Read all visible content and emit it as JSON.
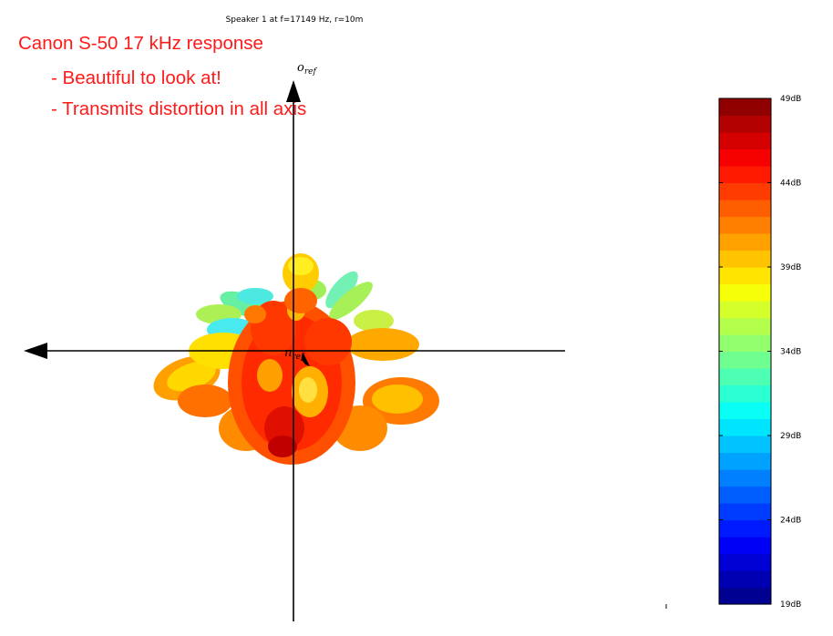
{
  "plot": {
    "title": "Speaker 1 at f=17149 Hz, r=10m",
    "axis_labels": {
      "vertical": "o",
      "vertical_sub": "ref",
      "origin": "n",
      "origin_sub": "ref"
    }
  },
  "annotation": {
    "title": "Canon S-50 17 kHz response",
    "line1": "- Beautiful to look at!",
    "line2": "- Transmits distortion in all axis",
    "color": "#ff1a1a"
  },
  "chart_data": {
    "type": "heatmap",
    "title": "Speaker 1 at f=17149 Hz, r=10m",
    "description_type": "3D polar directivity balloon, colored by level",
    "colorbar": {
      "min": 19,
      "max": 49,
      "unit": "dB",
      "levels": 30,
      "ticks": [
        {
          "value": 49,
          "label": "49dB"
        },
        {
          "value": 44,
          "label": "44dB"
        },
        {
          "value": 39,
          "label": "39dB"
        },
        {
          "value": 34,
          "label": "34dB"
        },
        {
          "value": 29,
          "label": "29dB"
        },
        {
          "value": 24,
          "label": "24dB"
        },
        {
          "value": 19,
          "label": "19dB"
        }
      ],
      "colormap": "jet"
    }
  }
}
